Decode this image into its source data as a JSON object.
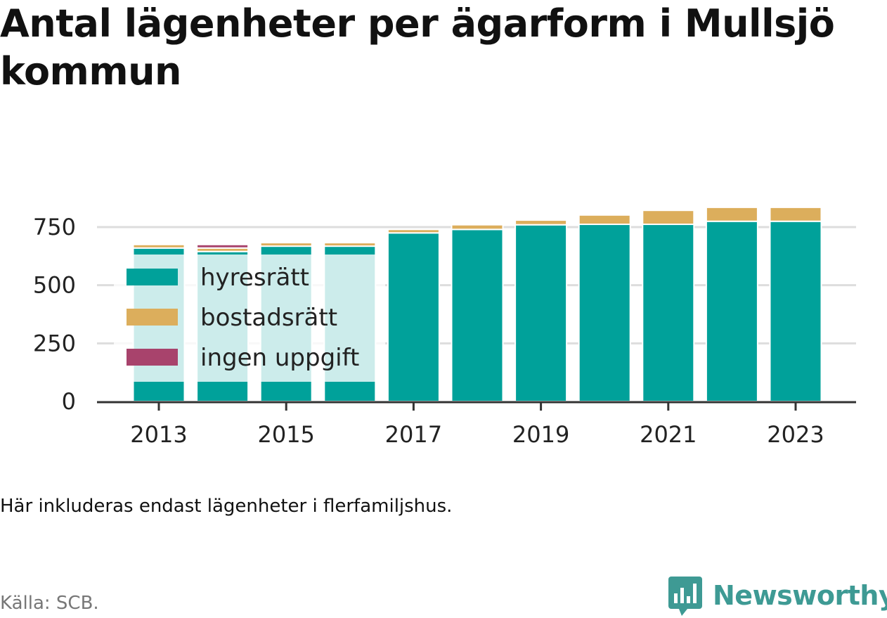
{
  "title": "Antal lägenheter per ägarform i Mullsjö kommun",
  "note": "Här inkluderas endast lägenheter i flerfamiljshus.",
  "source": "Källa: SCB.",
  "brand": "Newsworthy",
  "colors": {
    "hyresratt": "#00a19a",
    "bostadsratt": "#dcae5c",
    "ingen_uppgift": "#a8436c",
    "legend_overlay": "#cce9e8",
    "grid": "#dddddd",
    "axis": "#333333",
    "brand": "#3e9a94"
  },
  "chart_data": {
    "type": "bar",
    "stacked": true,
    "categories": [
      "2013",
      "2014",
      "2015",
      "2016",
      "2017",
      "2018",
      "2019",
      "2020",
      "2021",
      "2022",
      "2023"
    ],
    "x_tick_labels": [
      "2013",
      "2015",
      "2017",
      "2019",
      "2021",
      "2023"
    ],
    "y_ticks": [
      0,
      250,
      500,
      750
    ],
    "ylim": [
      0,
      870
    ],
    "legend": [
      "hyresrätt",
      "bostadsrätt",
      "ingen uppgift"
    ],
    "legend_position": "upper-left inside plot",
    "grid": true,
    "series": [
      {
        "name": "hyresrätt",
        "color": "#00a19a",
        "values": [
          660,
          645,
          668,
          668,
          725,
          740,
          760,
          762,
          762,
          775,
          775
        ]
      },
      {
        "name": "bostadsrätt",
        "color": "#dcae5c",
        "values": [
          15,
          15,
          15,
          15,
          15,
          20,
          20,
          40,
          60,
          60,
          60
        ]
      },
      {
        "name": "ingen uppgift",
        "color": "#a8436c",
        "values": [
          0,
          15,
          0,
          0,
          0,
          0,
          0,
          0,
          0,
          0,
          0
        ]
      }
    ]
  }
}
